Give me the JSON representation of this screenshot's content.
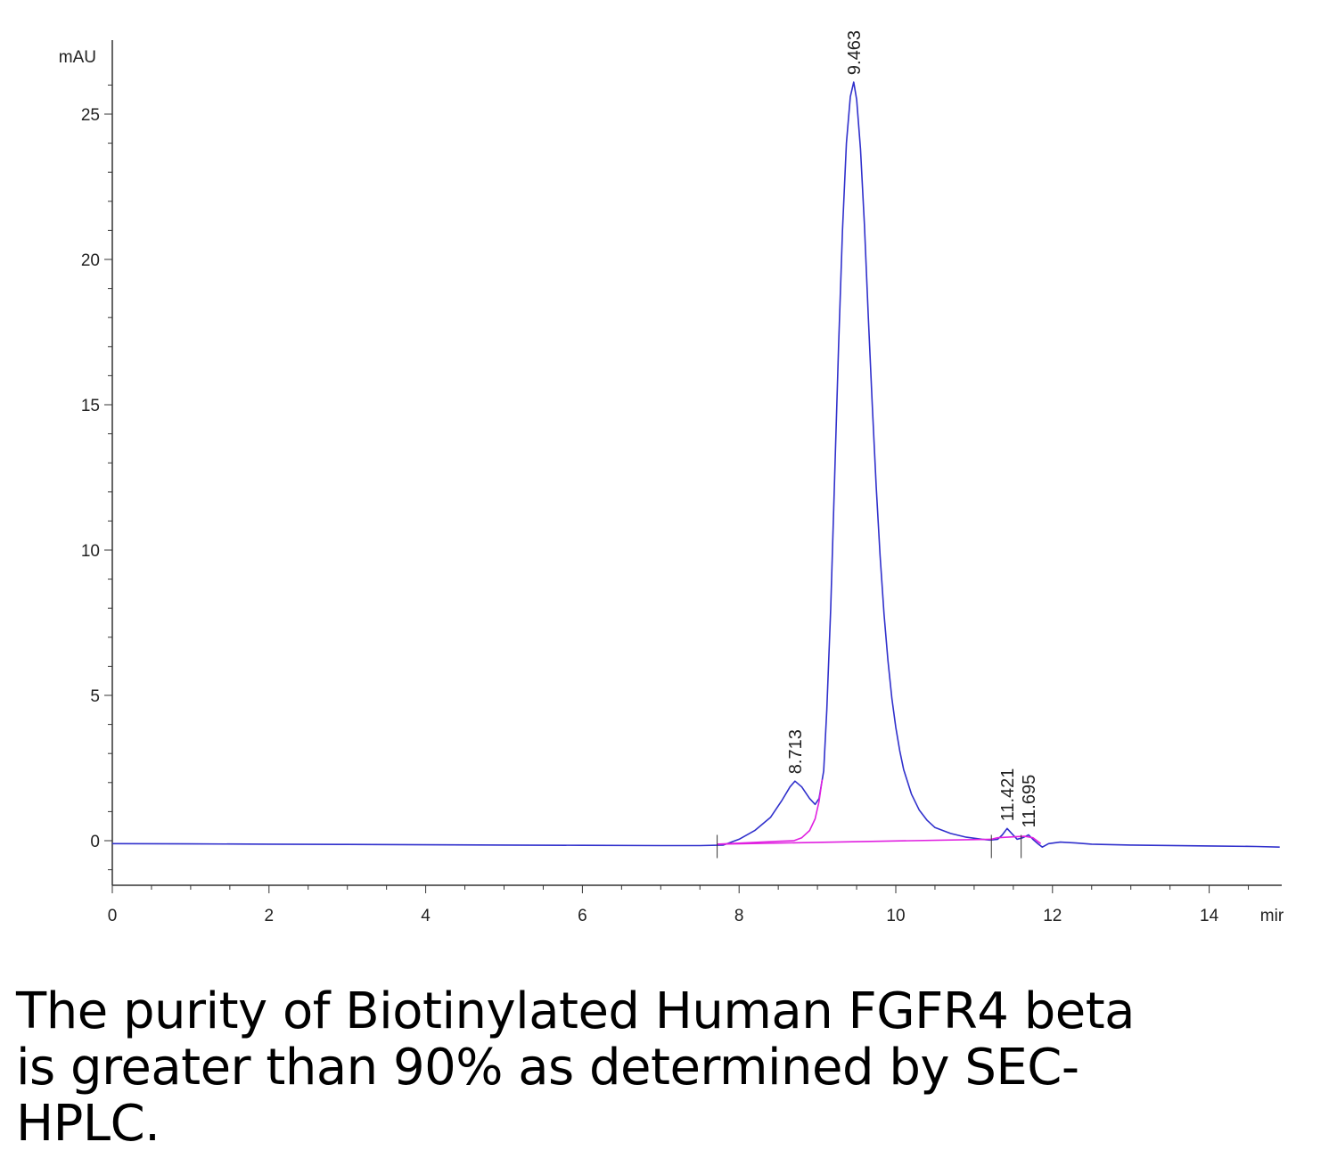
{
  "caption": "The purity of Biotinylated Human FGFR4 beta is greater than 90% as determined by SEC-HPLC.",
  "chart_data": {
    "type": "line",
    "title": "",
    "ylabel": "mAU",
    "xlabel": "mir",
    "xlim": [
      0,
      14.9
    ],
    "ylim": [
      -1.5,
      27
    ],
    "x_ticks": [
      0,
      2,
      4,
      6,
      8,
      10,
      12,
      14
    ],
    "y_ticks": [
      0,
      5,
      10,
      15,
      20,
      25
    ],
    "grid": false,
    "legend": "none",
    "series": [
      {
        "color": "#3030cc",
        "x": [
          0,
          1,
          2,
          3,
          4,
          5,
          6,
          7,
          7.5,
          7.8,
          8.0,
          8.2,
          8.4,
          8.55,
          8.65,
          8.713,
          8.8,
          8.9,
          8.97,
          9.02,
          9.08,
          9.12,
          9.17,
          9.22,
          9.27,
          9.32,
          9.37,
          9.42,
          9.463,
          9.5,
          9.55,
          9.6,
          9.65,
          9.7,
          9.75,
          9.8,
          9.85,
          9.9,
          9.95,
          10.0,
          10.05,
          10.1,
          10.2,
          10.3,
          10.4,
          10.5,
          10.7,
          10.9,
          11.1,
          11.2,
          11.3,
          11.36,
          11.421,
          11.48,
          11.55,
          11.62,
          11.695,
          11.76,
          11.82,
          11.87,
          11.95,
          12.1,
          12.3,
          12.5,
          13,
          14,
          14.6,
          14.9
        ],
        "y": [
          -0.1,
          -0.11,
          -0.12,
          -0.13,
          -0.14,
          -0.15,
          -0.16,
          -0.17,
          -0.17,
          -0.15,
          0.05,
          0.35,
          0.8,
          1.4,
          1.85,
          2.05,
          1.85,
          1.45,
          1.25,
          1.45,
          2.4,
          4.5,
          8.0,
          12.5,
          17.0,
          21.0,
          24.0,
          25.6,
          26.1,
          25.5,
          23.8,
          21.2,
          18.0,
          15.0,
          12.2,
          9.8,
          7.8,
          6.2,
          4.9,
          3.9,
          3.1,
          2.45,
          1.6,
          1.05,
          0.7,
          0.45,
          0.25,
          0.12,
          0.05,
          0.02,
          0.05,
          0.2,
          0.42,
          0.25,
          0.05,
          0.1,
          0.2,
          0.02,
          -0.12,
          -0.22,
          -0.1,
          -0.05,
          -0.08,
          -0.12,
          -0.15,
          -0.18,
          -0.2,
          -0.22
        ]
      },
      {
        "color": "#e020e0",
        "x": [
          7.72,
          8.5,
          8.7,
          8.8,
          8.9,
          8.97,
          9.02,
          9.06
        ],
        "y": [
          -0.12,
          -0.02,
          0.0,
          0.1,
          0.35,
          0.75,
          1.35,
          2.1
        ]
      },
      {
        "color": "#e020e0",
        "x": [
          7.72,
          11.22
        ],
        "y": [
          -0.12,
          0.05
        ]
      },
      {
        "color": "#e020e0",
        "x": [
          11.22,
          11.3,
          11.421,
          11.55,
          11.65,
          11.75,
          11.85
        ],
        "y": [
          0.05,
          0.1,
          0.12,
          0.14,
          0.15,
          0.1,
          -0.1
        ]
      }
    ],
    "peak_labels": [
      {
        "x": 8.713,
        "y": 2.05,
        "label": "8.713"
      },
      {
        "x": 9.463,
        "y": 26.1,
        "label": "9.463"
      },
      {
        "x": 11.421,
        "y": 0.42,
        "label": "11.421"
      },
      {
        "x": 11.695,
        "y": 0.2,
        "label": "11.695"
      }
    ],
    "integration_marks": [
      7.72,
      11.22,
      11.6
    ]
  }
}
